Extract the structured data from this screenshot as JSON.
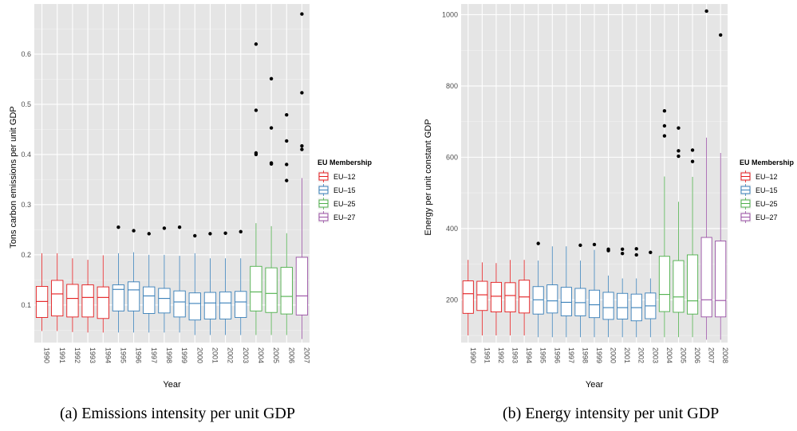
{
  "chart_data": [
    {
      "type": "boxplot",
      "title": "",
      "xlabel": "Year",
      "ylabel": "Tons carbon emissions per unit GDP",
      "ylim": [
        0.025,
        0.7
      ],
      "yticks": [
        0.1,
        0.2,
        0.3,
        0.4,
        0.5,
        0.6
      ],
      "legend": {
        "title": "EU Membership",
        "position": "right",
        "entries": [
          "EU–12",
          "EU–15",
          "EU–25",
          "EU–27"
        ]
      },
      "colors": {
        "EU-12": "#e41a1c",
        "EU-15": "#377eb8",
        "EU-25": "#4daf4a",
        "EU-27": "#984ea3"
      },
      "boxes": [
        {
          "x": "1990",
          "group": "EU-12",
          "lo": 0.048,
          "q1": 0.075,
          "med": 0.107,
          "q3": 0.137,
          "hi": 0.203,
          "outliers": []
        },
        {
          "x": "1991",
          "group": "EU-12",
          "lo": 0.048,
          "q1": 0.078,
          "med": 0.122,
          "q3": 0.149,
          "hi": 0.203,
          "outliers": []
        },
        {
          "x": "1992",
          "group": "EU-12",
          "lo": 0.046,
          "q1": 0.076,
          "med": 0.113,
          "q3": 0.141,
          "hi": 0.193,
          "outliers": []
        },
        {
          "x": "1993",
          "group": "EU-12",
          "lo": 0.045,
          "q1": 0.076,
          "med": 0.115,
          "q3": 0.14,
          "hi": 0.19,
          "outliers": []
        },
        {
          "x": "1994",
          "group": "EU-12",
          "lo": 0.045,
          "q1": 0.073,
          "med": 0.115,
          "q3": 0.136,
          "hi": 0.199,
          "outliers": []
        },
        {
          "x": "1995",
          "group": "EU-15",
          "lo": 0.045,
          "q1": 0.088,
          "med": 0.131,
          "q3": 0.14,
          "hi": 0.203,
          "outliers": [
            0.255
          ]
        },
        {
          "x": "1996",
          "group": "EU-15",
          "lo": 0.045,
          "q1": 0.088,
          "med": 0.13,
          "q3": 0.146,
          "hi": 0.205,
          "outliers": [
            0.248
          ]
        },
        {
          "x": "1997",
          "group": "EU-15",
          "lo": 0.045,
          "q1": 0.083,
          "med": 0.118,
          "q3": 0.136,
          "hi": 0.2,
          "outliers": [
            0.242
          ]
        },
        {
          "x": "1998",
          "group": "EU-15",
          "lo": 0.045,
          "q1": 0.084,
          "med": 0.113,
          "q3": 0.133,
          "hi": 0.2,
          "outliers": [
            0.253
          ]
        },
        {
          "x": "1999",
          "group": "EU-15",
          "lo": 0.045,
          "q1": 0.076,
          "med": 0.106,
          "q3": 0.128,
          "hi": 0.198,
          "outliers": [
            0.255
          ]
        },
        {
          "x": "2000",
          "group": "EU-15",
          "lo": 0.04,
          "q1": 0.07,
          "med": 0.103,
          "q3": 0.124,
          "hi": 0.203,
          "outliers": [
            0.238
          ]
        },
        {
          "x": "2001",
          "group": "EU-15",
          "lo": 0.04,
          "q1": 0.072,
          "med": 0.104,
          "q3": 0.125,
          "hi": 0.193,
          "outliers": [
            0.242
          ]
        },
        {
          "x": "2002",
          "group": "EU-15",
          "lo": 0.04,
          "q1": 0.072,
          "med": 0.104,
          "q3": 0.126,
          "hi": 0.193,
          "outliers": [
            0.243
          ]
        },
        {
          "x": "2003",
          "group": "EU-15",
          "lo": 0.04,
          "q1": 0.075,
          "med": 0.106,
          "q3": 0.127,
          "hi": 0.193,
          "outliers": [
            0.246
          ]
        },
        {
          "x": "2004",
          "group": "EU-25",
          "lo": 0.04,
          "q1": 0.088,
          "med": 0.126,
          "q3": 0.177,
          "hi": 0.263,
          "outliers": [
            0.62,
            0.488,
            0.403,
            0.4
          ]
        },
        {
          "x": "2005",
          "group": "EU-25",
          "lo": 0.04,
          "q1": 0.085,
          "med": 0.123,
          "q3": 0.174,
          "hi": 0.257,
          "outliers": [
            0.551,
            0.453,
            0.383,
            0.381
          ]
        },
        {
          "x": "2006",
          "group": "EU-25",
          "lo": 0.04,
          "q1": 0.082,
          "med": 0.117,
          "q3": 0.175,
          "hi": 0.243,
          "outliers": [
            0.479,
            0.427,
            0.38,
            0.348
          ]
        },
        {
          "x": "2007",
          "group": "EU-27",
          "lo": 0.032,
          "q1": 0.08,
          "med": 0.118,
          "q3": 0.195,
          "hi": 0.353,
          "outliers": [
            0.68,
            0.523,
            0.417,
            0.41
          ]
        }
      ]
    },
    {
      "type": "boxplot",
      "title": "",
      "xlabel": "Year",
      "ylabel": "Energy per unit constant GDP",
      "ylim": [
        80,
        1030
      ],
      "yticks": [
        200,
        400,
        600,
        800,
        1000
      ],
      "legend": {
        "title": "EU Membership",
        "position": "right",
        "entries": [
          "EU–12",
          "EU–15",
          "EU–25",
          "EU–27"
        ]
      },
      "colors": {
        "EU-12": "#e41a1c",
        "EU-15": "#377eb8",
        "EU-25": "#4daf4a",
        "EU-27": "#984ea3"
      },
      "boxes": [
        {
          "x": "1990",
          "group": "EU-12",
          "lo": 100,
          "q1": 162,
          "med": 217,
          "q3": 253,
          "hi": 312,
          "outliers": []
        },
        {
          "x": "1991",
          "group": "EU-12",
          "lo": 100,
          "q1": 170,
          "med": 214,
          "q3": 252,
          "hi": 305,
          "outliers": []
        },
        {
          "x": "1992",
          "group": "EU-12",
          "lo": 100,
          "q1": 166,
          "med": 210,
          "q3": 249,
          "hi": 303,
          "outliers": []
        },
        {
          "x": "1993",
          "group": "EU-12",
          "lo": 100,
          "q1": 166,
          "med": 212,
          "q3": 248,
          "hi": 312,
          "outliers": []
        },
        {
          "x": "1994",
          "group": "EU-12",
          "lo": 100,
          "q1": 163,
          "med": 208,
          "q3": 255,
          "hi": 312,
          "outliers": []
        },
        {
          "x": "1995",
          "group": "EU-15",
          "lo": 95,
          "q1": 160,
          "med": 200,
          "q3": 237,
          "hi": 310,
          "outliers": [
            358
          ]
        },
        {
          "x": "1996",
          "group": "EU-15",
          "lo": 95,
          "q1": 163,
          "med": 197,
          "q3": 242,
          "hi": 350,
          "outliers": []
        },
        {
          "x": "1997",
          "group": "EU-15",
          "lo": 95,
          "q1": 155,
          "med": 193,
          "q3": 235,
          "hi": 350,
          "outliers": []
        },
        {
          "x": "1998",
          "group": "EU-15",
          "lo": 95,
          "q1": 155,
          "med": 192,
          "q3": 232,
          "hi": 310,
          "outliers": [
            353
          ]
        },
        {
          "x": "1999",
          "group": "EU-15",
          "lo": 95,
          "q1": 150,
          "med": 186,
          "q3": 227,
          "hi": 340,
          "outliers": [
            355
          ]
        },
        {
          "x": "2000",
          "group": "EU-15",
          "lo": 95,
          "q1": 145,
          "med": 178,
          "q3": 221,
          "hi": 268,
          "outliers": [
            342,
            338
          ]
        },
        {
          "x": "2001",
          "group": "EU-15",
          "lo": 95,
          "q1": 146,
          "med": 178,
          "q3": 218,
          "hi": 260,
          "outliers": [
            342,
            330
          ]
        },
        {
          "x": "2002",
          "group": "EU-15",
          "lo": 95,
          "q1": 141,
          "med": 178,
          "q3": 216,
          "hi": 260,
          "outliers": [
            343,
            326
          ]
        },
        {
          "x": "2003",
          "group": "EU-15",
          "lo": 95,
          "q1": 147,
          "med": 183,
          "q3": 219,
          "hi": 260,
          "outliers": [
            333
          ]
        },
        {
          "x": "2004",
          "group": "EU-25",
          "lo": 95,
          "q1": 167,
          "med": 215,
          "q3": 322,
          "hi": 546,
          "outliers": [
            730,
            688,
            660
          ]
        },
        {
          "x": "2005",
          "group": "EU-25",
          "lo": 95,
          "q1": 165,
          "med": 208,
          "q3": 310,
          "hi": 475,
          "outliers": [
            682,
            618,
            603
          ]
        },
        {
          "x": "2006",
          "group": "EU-25",
          "lo": 95,
          "q1": 160,
          "med": 197,
          "q3": 326,
          "hi": 545,
          "outliers": [
            620,
            588
          ]
        },
        {
          "x": "2007",
          "group": "EU-27",
          "lo": 88,
          "q1": 152,
          "med": 200,
          "q3": 375,
          "hi": 655,
          "outliers": [
            1010
          ]
        },
        {
          "x": "2008",
          "group": "EU-27",
          "lo": 88,
          "q1": 152,
          "med": 198,
          "q3": 365,
          "hi": 612,
          "outliers": [
            943
          ]
        }
      ]
    }
  ],
  "captions": {
    "a": "(a)  Emissions intensity per unit GDP",
    "b": "(b)  Energy intensity per unit GDP"
  }
}
